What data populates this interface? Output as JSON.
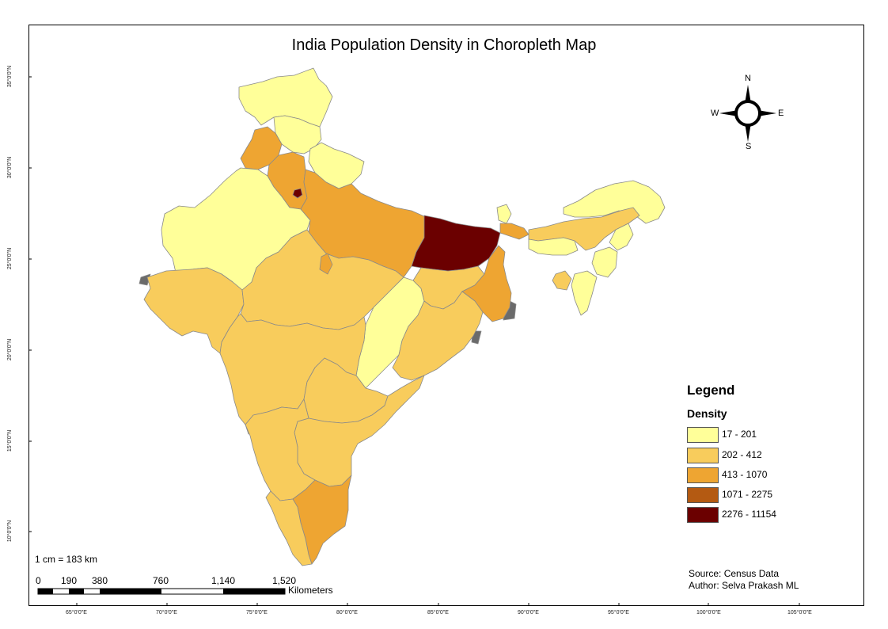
{
  "title": "India Population Density in Choropleth Map",
  "latitude_labels": [
    "35°0'0\"N",
    "30°0'0\"N",
    "25°0'0\"N",
    "20°0'0\"N",
    "15°0'0\"N",
    "10°0'0\"N"
  ],
  "longitude_labels": [
    "65°0'0\"E",
    "70°0'0\"E",
    "75°0'0\"E",
    "80°0'0\"E",
    "85°0'0\"E",
    "90°0'0\"E",
    "95°0'0\"E",
    "100°0'0\"E",
    "105°0'0\"E"
  ],
  "compass": {
    "n": "N",
    "s": "S",
    "e": "E",
    "w": "W"
  },
  "legend": {
    "title": "Legend",
    "subtitle": "Density",
    "classes": [
      {
        "label": "17 - 201",
        "color": "#ffff99"
      },
      {
        "label": "202 - 412",
        "color": "#f8cc5c"
      },
      {
        "label": "413 - 1070",
        "color": "#eea532"
      },
      {
        "label": "1071 - 2275",
        "color": "#b45a12"
      },
      {
        "label": "2276 - 11154",
        "color": "#6b0000"
      }
    ]
  },
  "scale": {
    "ratio": "1 cm = 183 km",
    "ticks": [
      "0",
      "190",
      "380",
      "760",
      "1,140",
      "1,520"
    ],
    "unit": "Kilometers"
  },
  "credits": {
    "source": "Source: Census Data",
    "author": "Author: Selva Prakash ML"
  },
  "colors": {
    "border": "#8a8a8a",
    "coast_edge": "#6b6b6b"
  }
}
